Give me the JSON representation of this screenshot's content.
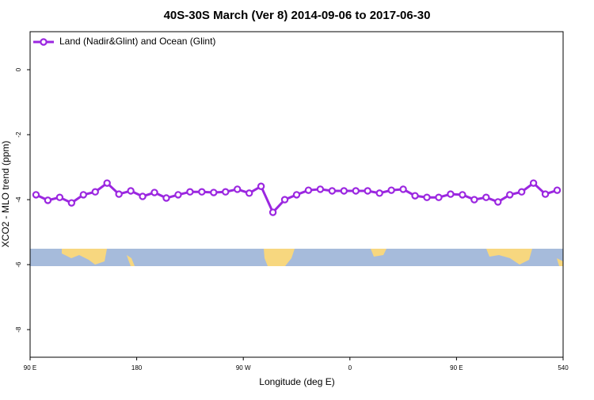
{
  "chart_data": {
    "type": "line",
    "title": "40S-30S March (Ver 8)   2014-09-06 to 2017-06-30",
    "x_label": "Longitude (deg E)",
    "y_label": "XCO2 - MLO trend (ppm)",
    "x": [
      95,
      105,
      115,
      125,
      135,
      145,
      155,
      165,
      175,
      185,
      195,
      205,
      215,
      225,
      235,
      245,
      255,
      265,
      275,
      285,
      295,
      305,
      315,
      325,
      335,
      345,
      355,
      365,
      375,
      385,
      395,
      405,
      415,
      425,
      435,
      445,
      455,
      465,
      475,
      485,
      495,
      505,
      515,
      525,
      535
    ],
    "series": [
      {
        "name": "Land (Nadir&Glint) and Ocean (Glint)",
        "color": "#9b27e0",
        "values": [
          -3.85,
          -4.02,
          -3.93,
          -4.1,
          -3.85,
          -3.76,
          -3.49,
          -3.83,
          -3.73,
          -3.9,
          -3.78,
          -3.95,
          -3.85,
          -3.76,
          -3.76,
          -3.78,
          -3.76,
          -3.68,
          -3.8,
          -3.59,
          -4.39,
          -4.0,
          -3.85,
          -3.71,
          -3.68,
          -3.73,
          -3.73,
          -3.73,
          -3.73,
          -3.8,
          -3.71,
          -3.68,
          -3.88,
          -3.93,
          -3.93,
          -3.83,
          -3.85,
          -4.0,
          -3.93,
          -4.07,
          -3.85,
          -3.76,
          -3.49,
          -3.83,
          -3.71
        ]
      }
    ],
    "xlim": [
      90,
      540
    ],
    "xticks": [
      {
        "value": 90,
        "label": "90 E"
      },
      180,
      {
        "value": 270,
        "label": "90 W"
      },
      {
        "value": 360,
        "label": "0"
      },
      {
        "value": 450,
        "label": "90 E"
      },
      540
    ],
    "ylim": [
      -8.85,
      1.17
    ],
    "yticks": [
      0,
      -2,
      -4,
      -6,
      -8
    ],
    "legend": "top-left",
    "grid": false
  }
}
